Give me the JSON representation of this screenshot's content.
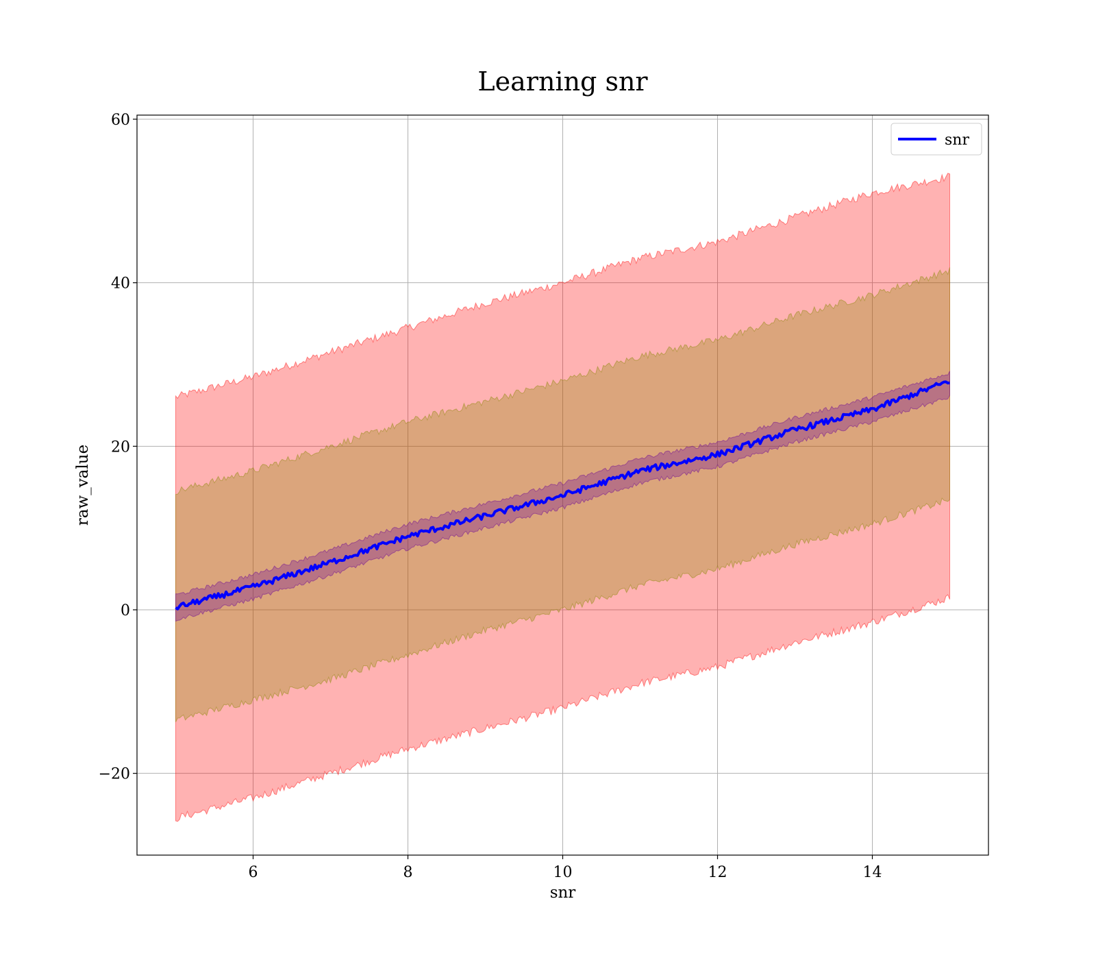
{
  "chart_data": {
    "type": "line",
    "title": "Learning snr",
    "xlabel": "snr",
    "ylabel": "raw_value",
    "xlim": [
      4.5,
      15.5
    ],
    "ylim": [
      -30,
      60.5
    ],
    "x_ticks": [
      6,
      8,
      10,
      12,
      14
    ],
    "x_tick_labels": [
      "6",
      "8",
      "10",
      "12",
      "14"
    ],
    "y_ticks": [
      -20,
      0,
      20,
      40,
      60
    ],
    "y_tick_labels": [
      "−20",
      "0",
      "20",
      "40",
      "60"
    ],
    "grid": true,
    "legend": {
      "position": "top-right",
      "entries": [
        "snr"
      ]
    },
    "x_range": [
      5,
      15
    ],
    "series": [
      {
        "name": "snr",
        "color": "#0000ff",
        "x": [
          5,
          6,
          7,
          8,
          9,
          10,
          11,
          12,
          13,
          14,
          15
        ],
        "values": [
          0.3,
          2.8,
          5.8,
          9.0,
          11.5,
          14.0,
          17.0,
          19.0,
          22.0,
          24.5,
          28.0
        ]
      }
    ],
    "bands": [
      {
        "color": "#ff0000",
        "opacity": 0.3,
        "x": [
          5,
          6,
          7,
          8,
          9,
          10,
          11,
          12,
          13,
          14,
          15
        ],
        "lower": [
          -25.5,
          -23,
          -20,
          -17,
          -14.5,
          -12,
          -9,
          -7,
          -4,
          -1.5,
          1.5
        ],
        "upper": [
          26,
          28.5,
          31.5,
          34.5,
          37.5,
          40,
          43,
          45,
          48,
          51,
          53
        ]
      },
      {
        "color": "#888800",
        "opacity": 0.3,
        "x": [
          5,
          6,
          7,
          8,
          9,
          10,
          11,
          12,
          13,
          14,
          15
        ],
        "lower": [
          -13.5,
          -11,
          -8.5,
          -5.5,
          -2.5,
          0,
          3,
          5,
          8,
          10.5,
          13.5
        ],
        "upper": [
          14.5,
          17,
          20,
          23,
          25.5,
          28,
          31,
          33,
          36,
          38.5,
          41.5
        ]
      },
      {
        "color": "#660099",
        "opacity": 0.3,
        "x": [
          5,
          6,
          7,
          8,
          9,
          10,
          11,
          12,
          13,
          14,
          15
        ],
        "lower": [
          -1.2,
          1.3,
          4.3,
          7.5,
          10,
          12.5,
          15.5,
          17.5,
          20.5,
          23,
          26
        ],
        "upper": [
          1.8,
          4.3,
          7.3,
          10.5,
          13,
          15.5,
          18.5,
          20.5,
          23.5,
          26,
          29
        ]
      }
    ]
  }
}
